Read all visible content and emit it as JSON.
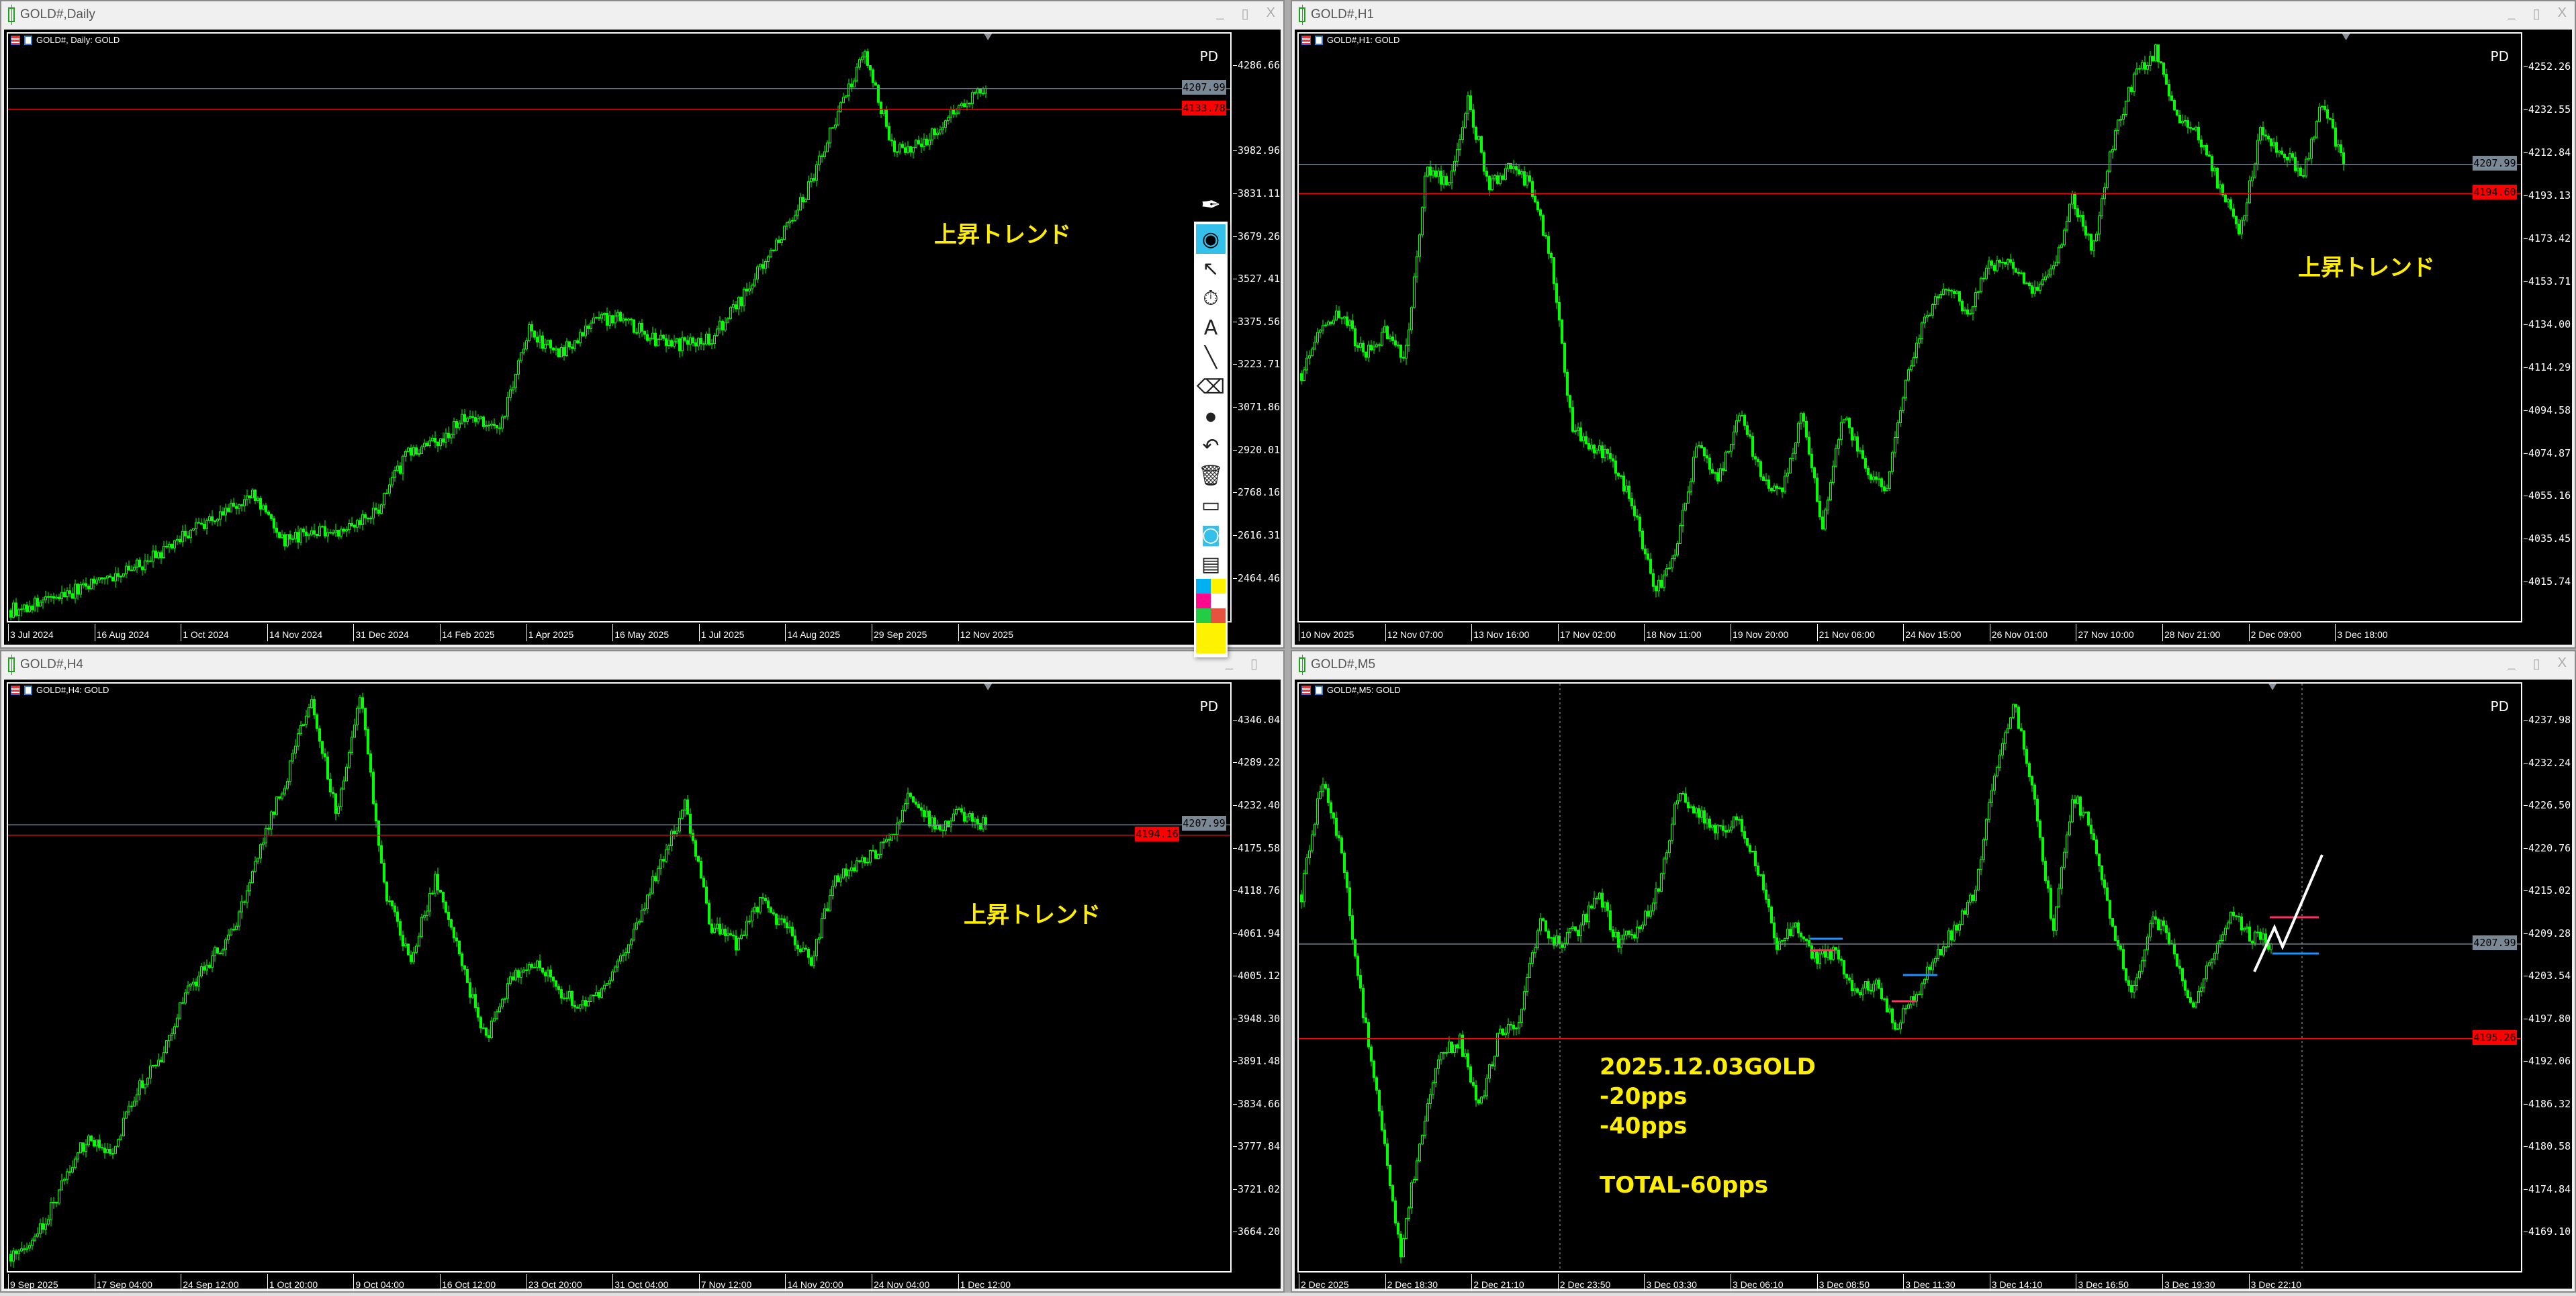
{
  "windows": [
    {
      "title": "GOLD#,Daily",
      "chart_label": "GOLD#, Daily:  GOLD",
      "pd": "PD",
      "annotation": "上昇トレンド",
      "buttons": {
        "minimize": "_",
        "maximize": "▯",
        "close": "X"
      }
    },
    {
      "title": "GOLD#,H1",
      "chart_label": "GOLD#,H1:  GOLD",
      "pd": "PD",
      "annotation": "上昇トレンド",
      "buttons": {
        "minimize": "_",
        "maximize": "▯",
        "close": "X"
      }
    },
    {
      "title": "GOLD#,H4",
      "chart_label": "GOLD#,H4:  GOLD",
      "pd": "PD",
      "annotation": "上昇トレンド",
      "buttons": {
        "minimize": "_",
        "maximize": "▯",
        "close": ""
      }
    },
    {
      "title": "GOLD#,M5",
      "chart_label": "GOLD#,M5:  GOLD",
      "pd": "PD",
      "annotation_lines": [
        "2025.12.03GOLD",
        "-20pps",
        "-40pps",
        "",
        "TOTAL-60pps"
      ],
      "buttons": {
        "minimize": "_",
        "maximize": "▯",
        "close": "X"
      }
    }
  ],
  "toolbar": {
    "items": [
      {
        "name": "pen-icon",
        "glyph": "✒"
      },
      {
        "name": "eye-icon",
        "glyph": "◉",
        "active": true
      },
      {
        "name": "cursor-icon",
        "glyph": "↖"
      },
      {
        "name": "timer-off-icon",
        "glyph": "⏱"
      },
      {
        "name": "text-icon",
        "glyph": "A"
      },
      {
        "name": "line-icon",
        "glyph": "╲"
      },
      {
        "name": "eraser-icon",
        "glyph": "⌫"
      },
      {
        "name": "dot-icon",
        "glyph": "●"
      },
      {
        "name": "undo-icon",
        "glyph": "↶"
      },
      {
        "name": "trash-icon",
        "glyph": "🗑"
      },
      {
        "name": "easel-icon",
        "glyph": "▭"
      },
      {
        "name": "camera-icon",
        "glyph": "◙"
      },
      {
        "name": "clipboard-icon",
        "glyph": "▤"
      }
    ],
    "swatches": [
      "#00b0f0",
      "#fff200",
      "#ff0a8c",
      "#ffffff",
      "#22cc44",
      "#e85040"
    ],
    "selected_color": "#fff200"
  },
  "colors": {
    "candle": "#00ff00",
    "bid_line": "#7a8795",
    "stop_line": "#ff0000",
    "annotation": "#ffee00"
  },
  "chart_data": [
    {
      "type": "candlestick",
      "symbol": "GOLD#",
      "timeframe": "Daily",
      "x_tick_labels": [
        "3 Jul 2024",
        "16 Aug 2024",
        "1 Oct 2024",
        "14 Nov 2024",
        "31 Dec 2024",
        "14 Feb 2025",
        "1 Apr 2025",
        "16 May 2025",
        "1 Jul 2025",
        "14 Aug 2025",
        "29 Sep 2025",
        "12 Nov 2025"
      ],
      "y_ticks": [
        4286.66,
        3982.96,
        3831.11,
        3679.26,
        3527.41,
        3375.56,
        3223.71,
        3071.86,
        2920.01,
        2768.16,
        2616.31,
        2464.46
      ],
      "ylim": [
        2306,
        4403.5
      ],
      "current_price": 4207.99,
      "red_line": 4133.78,
      "closes_sampled": [
        2354,
        2380,
        2420,
        2470,
        2500,
        2560,
        2646,
        2700,
        2762,
        2600,
        2634,
        2646,
        2704,
        2908,
        2949,
        3054,
        2984,
        3346,
        3259,
        3375,
        3405,
        3317,
        3300,
        3317,
        3463,
        3638,
        3813,
        4076,
        4339,
        3988,
        4017,
        4135,
        4208
      ]
    },
    {
      "type": "candlestick",
      "symbol": "GOLD#",
      "timeframe": "H1",
      "x_tick_labels": [
        "10 Nov 2025",
        "12 Nov 07:00",
        "13 Nov 16:00",
        "17 Nov 02:00",
        "18 Nov 11:00",
        "19 Nov 20:00",
        "21 Nov 06:00",
        "24 Nov 15:00",
        "26 Nov 01:00",
        "27 Nov 10:00",
        "28 Nov 21:00",
        "2 Dec 09:00",
        "3 Dec 18:00"
      ],
      "y_ticks": [
        4252.26,
        4232.55,
        4212.84,
        4193.13,
        4173.42,
        4153.71,
        4134.0,
        4114.29,
        4094.58,
        4074.87,
        4055.16,
        4035.45,
        4015.74
      ],
      "ylim": [
        3997.0,
        4268.1
      ],
      "current_price": 4207.99,
      "red_line": 4194.6,
      "closes_sampled": [
        4112,
        4135,
        4139,
        4120,
        4131,
        4120,
        4207,
        4199,
        4237,
        4199,
        4207,
        4199,
        4162,
        4086,
        4079,
        4071,
        4048,
        4011,
        4033,
        4079,
        4063,
        4094,
        4067,
        4056,
        4094,
        4041,
        4094,
        4071,
        4056,
        4109,
        4139,
        4154,
        4139,
        4162,
        4162,
        4150,
        4158,
        4192,
        4169,
        4222,
        4249,
        4260,
        4230,
        4222,
        4199,
        4177,
        4222,
        4215,
        4203,
        4237,
        4208
      ]
    },
    {
      "type": "candlestick",
      "symbol": "GOLD#",
      "timeframe": "H4",
      "x_tick_labels": [
        "9 Sep 2025",
        "17 Sep 04:00",
        "24 Sep 12:00",
        "1 Oct 20:00",
        "9 Oct 04:00",
        "16 Oct 12:00",
        "23 Oct 20:00",
        "31 Oct 04:00",
        "7 Nov 12:00",
        "14 Nov 20:00",
        "24 Nov 04:00",
        "1 Dec 12:00"
      ],
      "y_ticks": [
        4346.04,
        4289.22,
        4232.4,
        4175.58,
        4118.76,
        4061.94,
        4005.12,
        3948.3,
        3891.48,
        3834.66,
        3777.84,
        3721.02,
        3664.2
      ],
      "ylim": [
        3609.9,
        4396.1
      ],
      "current_price": 4207.99,
      "red_line": 4194.16,
      "closes_sampled": [
        3636,
        3658,
        3723,
        3789,
        3767,
        3854,
        3898,
        3984,
        4028,
        4072,
        4180,
        4268,
        4377,
        4224,
        4377,
        4115,
        4028,
        4137,
        4028,
        3919,
        4006,
        4028,
        3984,
        3963,
        4006,
        4072,
        4159,
        4235,
        4072,
        4050,
        4104,
        4072,
        4028,
        4137,
        4159,
        4180,
        4250,
        4202,
        4224,
        4208
      ]
    },
    {
      "type": "candlestick",
      "symbol": "GOLD#",
      "timeframe": "M5",
      "x_tick_labels": [
        "2 Dec 2025",
        "2 Dec 18:30",
        "2 Dec 21:10",
        "2 Dec 23:50",
        "3 Dec 03:30",
        "3 Dec 06:10",
        "3 Dec 08:50",
        "3 Dec 11:30",
        "3 Dec 14:10",
        "3 Dec 16:50",
        "3 Dec 19:30",
        "3 Dec 22:10"
      ],
      "y_ticks": [
        4237.98,
        4232.24,
        4226.5,
        4220.76,
        4215.02,
        4209.28,
        4203.54,
        4197.8,
        4192.06,
        4186.32,
        4180.58,
        4174.84,
        4169.1
      ],
      "ylim": [
        4163.6,
        4243.04
      ],
      "current_price": 4207.99,
      "red_line": 4195.26,
      "closes_sampled": [
        4214.6,
        4230,
        4221,
        4201,
        4184,
        4166,
        4182,
        4193,
        4195,
        4186,
        4196,
        4197,
        4211,
        4208,
        4210,
        4215,
        4208,
        4210,
        4215,
        4228,
        4226,
        4223,
        4225,
        4219,
        4208,
        4210,
        4206,
        4207,
        4201,
        4203,
        4197,
        4201,
        4206,
        4210,
        4215,
        4230,
        4241,
        4228,
        4210,
        4228,
        4223,
        4210,
        4201,
        4212,
        4208,
        4199,
        4206,
        4212,
        4209,
        4208
      ]
    }
  ]
}
